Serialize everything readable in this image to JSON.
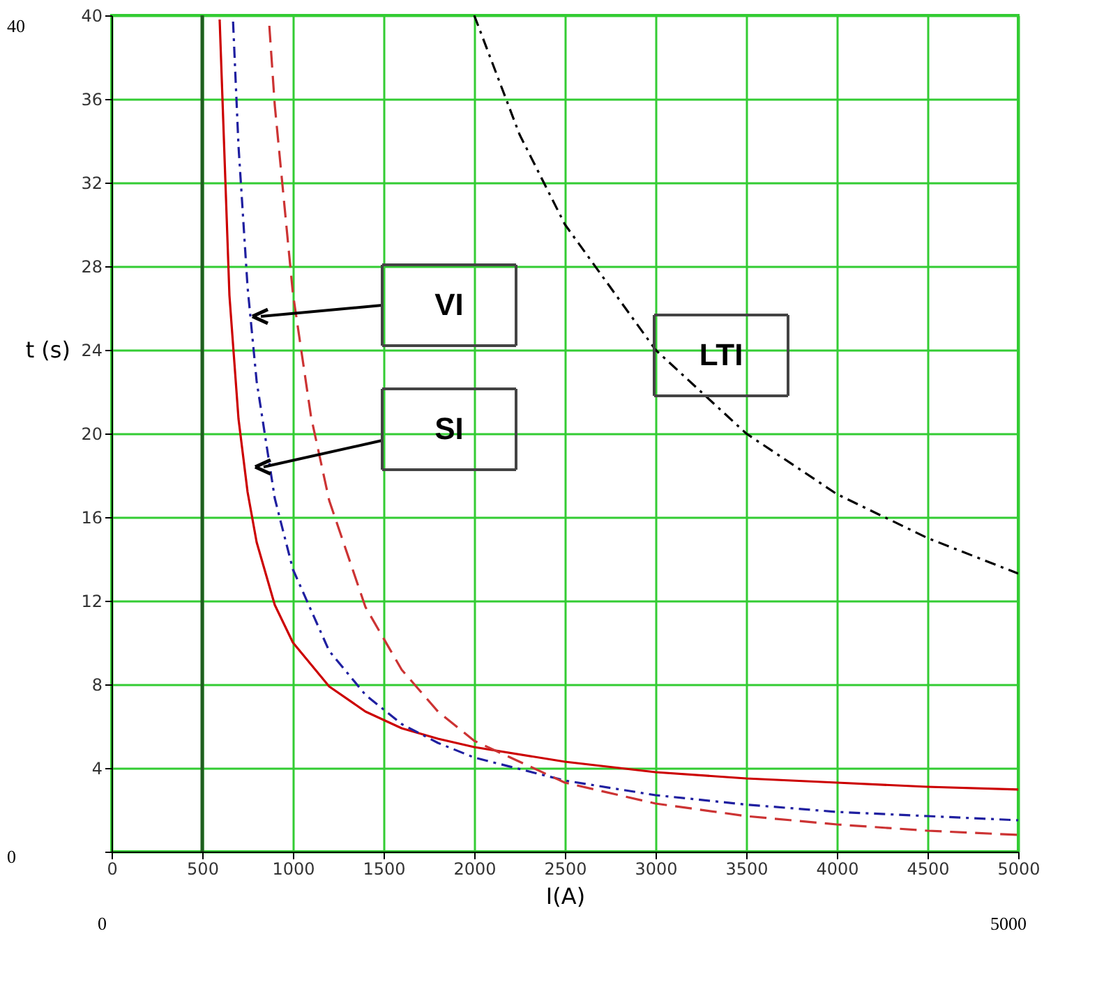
{
  "chart_data": {
    "type": "line",
    "xlabel": "I(A)",
    "ylabel": "t (s)",
    "xlim": [
      0,
      5000
    ],
    "ylim": [
      0,
      40
    ],
    "xticks": [
      0,
      500,
      1000,
      1500,
      2000,
      2500,
      3000,
      3500,
      4000,
      4500,
      5000
    ],
    "yticks": [
      {
        "value": 0,
        "label": null
      },
      4,
      8,
      12,
      16,
      20,
      24,
      28,
      32,
      36,
      40
    ],
    "grid": true,
    "series": [
      {
        "color": "#cc0000",
        "line_style": "solid",
        "x": [
          596,
          650,
          700,
          750,
          800,
          900,
          1000,
          1200,
          1400,
          1600,
          1800,
          2000,
          2500,
          3000,
          3500,
          4000,
          4500,
          5000
        ],
        "values": [
          39.8,
          26.6,
          20.7,
          17.2,
          14.8,
          11.8,
          10.0,
          7.9,
          6.7,
          5.9,
          5.4,
          5.0,
          4.3,
          3.8,
          3.5,
          3.3,
          3.1,
          2.97
        ]
      },
      {
        "color": "#1f1fa0",
        "line_style": "dotted",
        "x": [
          670,
          700,
          750,
          800,
          900,
          1000,
          1200,
          1400,
          1600,
          1800,
          2000,
          2500,
          3000,
          3500,
          4000,
          4500,
          5000
        ],
        "values": [
          39.7,
          33.75,
          27,
          22.5,
          16.9,
          13.5,
          9.6,
          7.5,
          6.1,
          5.2,
          4.5,
          3.4,
          2.7,
          2.25,
          1.9,
          1.7,
          1.5
        ]
      },
      {
        "color": "#cc3333",
        "line_style": "dashed",
        "x": [
          870,
          900,
          1000,
          1100,
          1200,
          1400,
          1600,
          1800,
          2000,
          2500,
          3000,
          3500,
          4000,
          4500,
          5000
        ],
        "values": [
          39.5,
          35.7,
          26.7,
          20.8,
          16.8,
          11.7,
          8.7,
          6.7,
          5.3,
          3.3,
          2.3,
          1.7,
          1.3,
          1.0,
          0.8
        ]
      },
      {
        "color": "#000000",
        "line_style": "dotted",
        "x": [
          2000,
          2250,
          2500,
          3000,
          3500,
          4000,
          4500,
          5000
        ],
        "values": [
          40,
          34.3,
          30,
          24,
          20,
          17.1,
          15,
          13.3
        ]
      }
    ],
    "ref_lines": [
      {
        "axis": "x",
        "value": 500,
        "color": "#1f5f1f",
        "line_style": "solid"
      }
    ],
    "annotations": [
      "VI",
      "SI",
      "LTI",
      "40",
      "0",
      "0",
      "5000"
    ]
  }
}
